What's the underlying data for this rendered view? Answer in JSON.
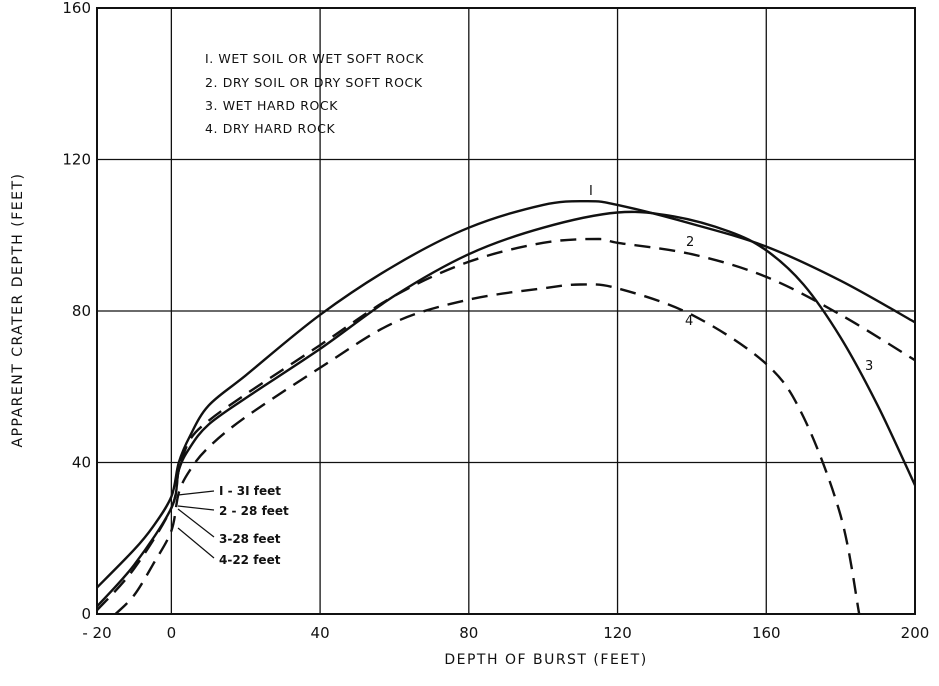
{
  "chart_data": {
    "type": "line",
    "title": "",
    "xlabel": "DEPTH OF BURST (FEET)",
    "ylabel": "APPARENT CRATER DEPTH (FEET)",
    "xlim": [
      -20,
      200
    ],
    "ylim": [
      0,
      160
    ],
    "x_ticks": [
      -20,
      0,
      40,
      80,
      120,
      160,
      200
    ],
    "x_tick_labels": [
      "- 20",
      "0",
      "40",
      "80",
      "120",
      "160",
      "200"
    ],
    "y_ticks": [
      0,
      40,
      80,
      120,
      160
    ],
    "y_tick_labels": [
      "0",
      "40",
      "80",
      "120",
      "160"
    ],
    "grid": true,
    "legend_position": "top-left",
    "legend": [
      "I. WET SOIL OR WET SOFT ROCK",
      "2. DRY SOIL OR DRY SOFT ROCK",
      "3. WET HARD ROCK",
      "4. DRY HARD ROCK"
    ],
    "series": [
      {
        "curve_label": "I",
        "style": "solid",
        "x": [
          -20,
          -10,
          -5,
          0,
          2,
          5,
          10,
          20,
          40,
          60,
          80,
          100,
          112,
          120,
          140,
          160,
          180,
          200
        ],
        "y": [
          7,
          17,
          23,
          31,
          40,
          47,
          55,
          63,
          79,
          92,
          102,
          108,
          109,
          108,
          103,
          97,
          88,
          77
        ]
      },
      {
        "curve_label": "2",
        "style": "dashed",
        "x": [
          -20,
          -10,
          0,
          2,
          5,
          10,
          20,
          40,
          60,
          80,
          100,
          115,
          120,
          140,
          160,
          180,
          200
        ],
        "y": [
          1,
          12,
          28,
          38,
          46,
          51,
          58,
          71,
          84,
          93,
          98,
          99,
          98,
          95,
          89,
          79,
          67
        ]
      },
      {
        "curve_label": "3",
        "style": "solid",
        "x": [
          -20,
          -10,
          0,
          2,
          5,
          10,
          20,
          40,
          60,
          80,
          100,
          120,
          135,
          150,
          160,
          170,
          180,
          190,
          200
        ],
        "y": [
          2,
          13,
          28,
          38,
          44,
          50,
          57,
          70,
          84,
          95,
          102,
          106,
          105,
          101,
          96,
          87,
          73,
          55,
          34
        ]
      },
      {
        "curve_label": "4",
        "style": "dashed",
        "x": [
          -15,
          -10,
          -5,
          0,
          2,
          5,
          10,
          20,
          40,
          60,
          80,
          100,
          110,
          120,
          140,
          160,
          170,
          180,
          185
        ],
        "y": [
          0,
          5,
          13,
          22,
          32,
          38,
          44,
          52,
          65,
          77,
          83,
          86,
          87,
          86,
          79,
          66,
          52,
          26,
          0
        ]
      }
    ],
    "curve_labels": [
      "I",
      "2",
      "3",
      "4"
    ],
    "annotations": [
      "I - 3I feet",
      "2 - 28 feet",
      "3-28 feet",
      "4-22 feet"
    ]
  }
}
